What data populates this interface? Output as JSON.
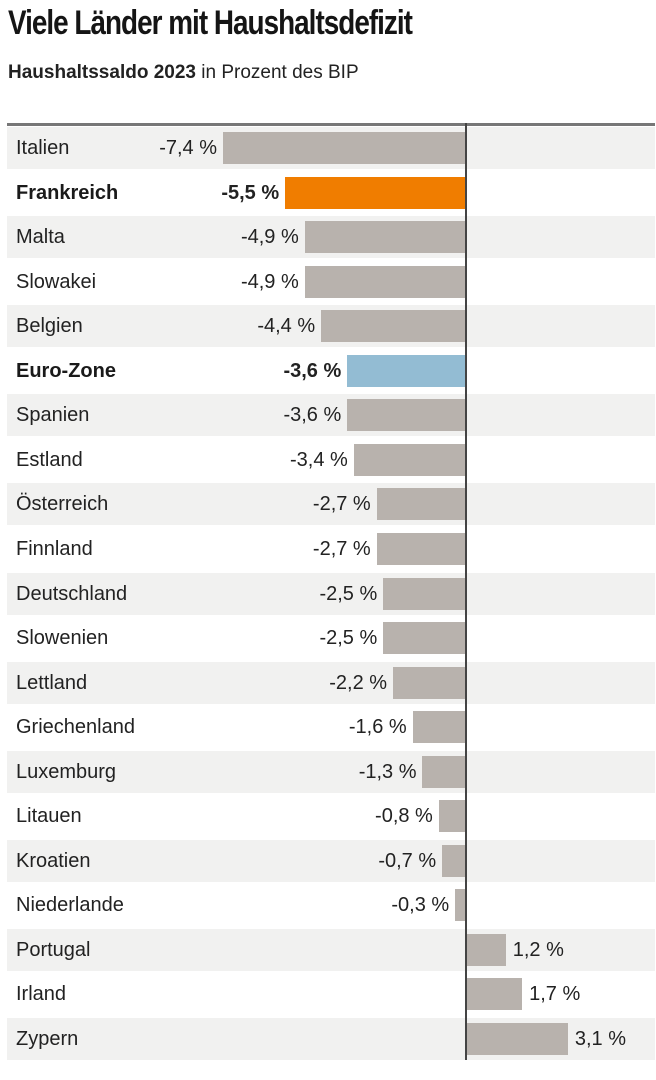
{
  "header": {
    "title": "Viele Länder mit Haushaltsdefizit",
    "subtitle_bold": "Haushaltssaldo 2023",
    "subtitle_rest": " in Prozent des BIP"
  },
  "colors": {
    "default_bar": "#b8b2ad",
    "highlight_france": "#f07d00",
    "highlight_eurozone": "#93bcd3"
  },
  "chart_data": {
    "type": "bar",
    "orientation": "horizontal",
    "title": "Viele Länder mit Haushaltsdefizit",
    "subtitle": "Haushaltssaldo 2023 in Prozent des BIP",
    "xlabel": "",
    "ylabel": "",
    "unit": "%",
    "xlim": [
      -7.4,
      5.5
    ],
    "grid": false,
    "categories": [
      "Italien",
      "Frankreich",
      "Malta",
      "Slowakei",
      "Belgien",
      "Euro-Zone",
      "Spanien",
      "Estland",
      "Österreich",
      "Finnland",
      "Deutschland",
      "Slowenien",
      "Lettland",
      "Griechenland",
      "Luxemburg",
      "Litauen",
      "Kroatien",
      "Niederlande",
      "Portugal",
      "Irland",
      "Zypern"
    ],
    "values": [
      -7.4,
      -5.5,
      -4.9,
      -4.9,
      -4.4,
      -3.6,
      -3.6,
      -3.4,
      -2.7,
      -2.7,
      -2.5,
      -2.5,
      -2.2,
      -1.6,
      -1.3,
      -0.8,
      -0.7,
      -0.3,
      1.2,
      1.7,
      3.1
    ],
    "value_labels": [
      "-7,4 %",
      "-5,5 %",
      "-4,9 %",
      "-4,9 %",
      "-4,4 %",
      "-3,6 %",
      "-3,6 %",
      "-3,4 %",
      "-2,7 %",
      "-2,7 %",
      "-2,5 %",
      "-2,5 %",
      "-2,2 %",
      "-1,6 %",
      "-1,3 %",
      "-0,8 %",
      "-0,7 %",
      "-0,3 %",
      "1,2 %",
      "1,7 %",
      "3,1 %"
    ],
    "highlight": {
      "Frankreich": "highlight_france",
      "Euro-Zone": "highlight_eurozone"
    },
    "bold_labels": [
      "Frankreich",
      "Euro-Zone"
    ]
  }
}
